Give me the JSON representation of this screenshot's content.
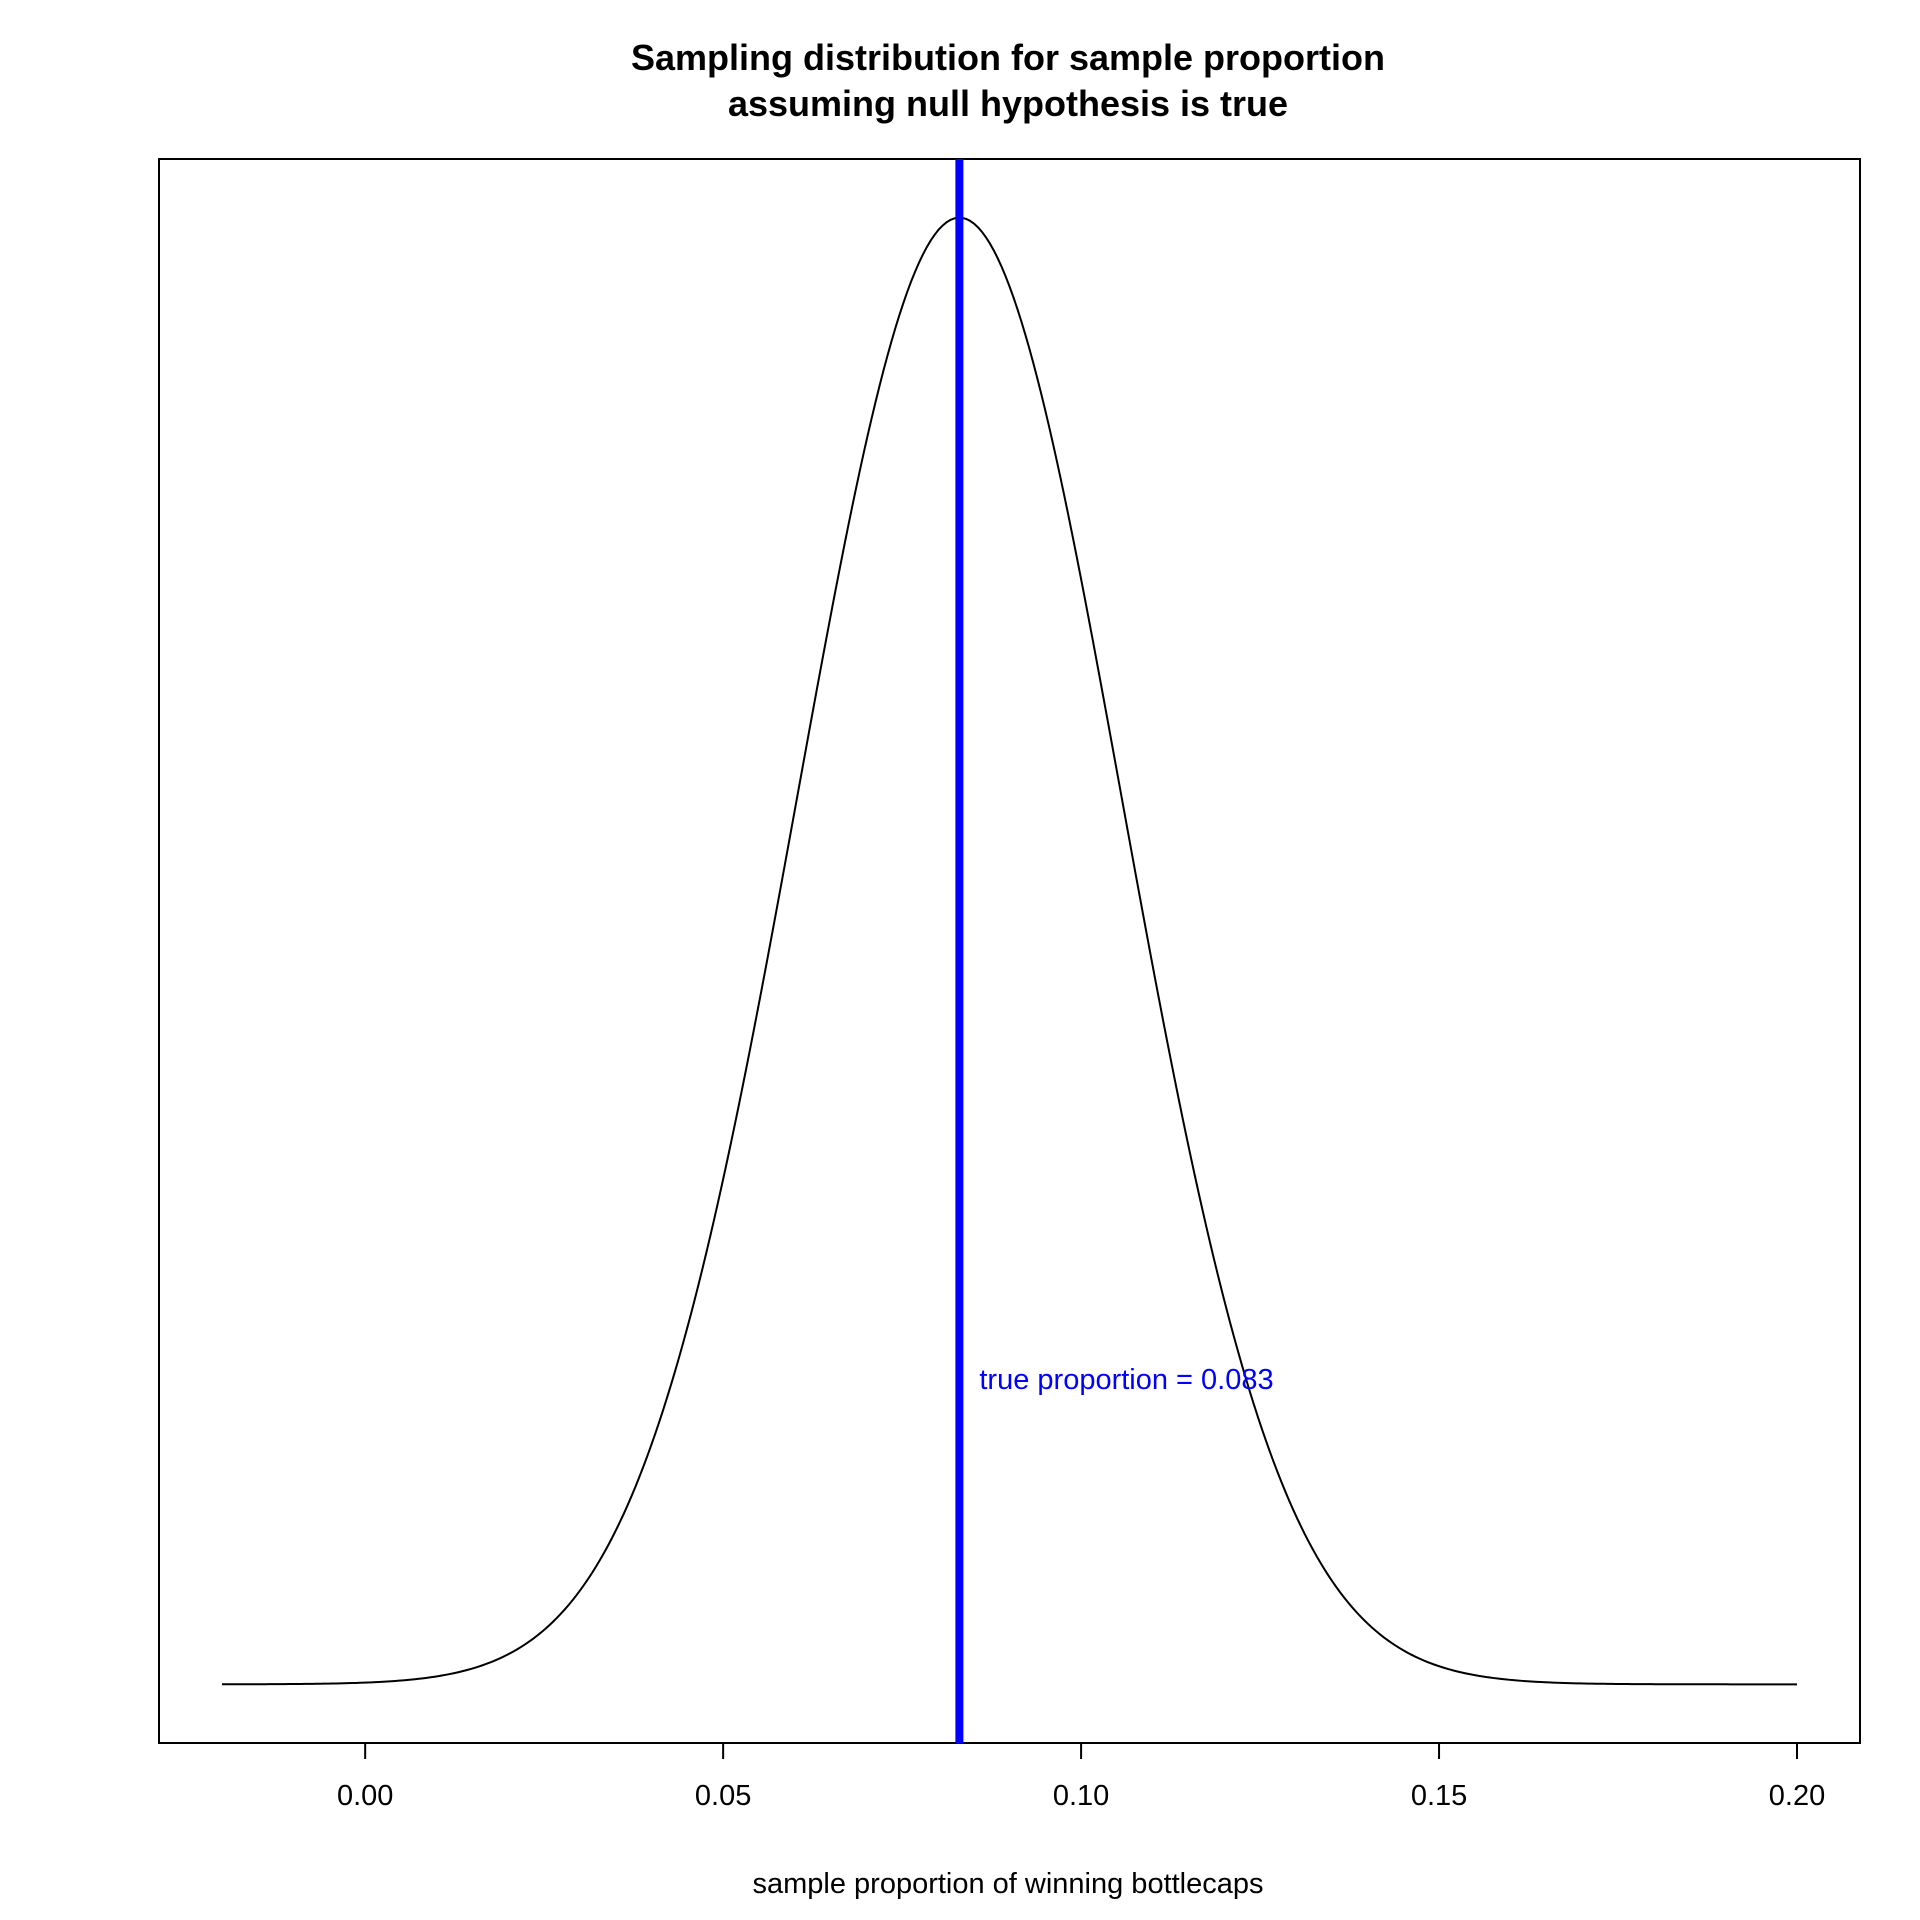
{
  "chart_data": {
    "type": "line",
    "title_lines": [
      "Sampling distribution for sample proportion",
      "assuming null hypothesis is true"
    ],
    "xlabel": "sample proportion of winning bottlecaps",
    "ylabel": "",
    "xlim": [
      -0.0288,
      0.2088
    ],
    "ylim": [
      -0.04,
      1.04
    ],
    "x_ticks": [
      0.0,
      0.05,
      0.1,
      0.15,
      0.2
    ],
    "x_tick_labels": [
      "0.00",
      "0.05",
      "0.10",
      "0.15",
      "0.20"
    ],
    "y_axis_shown": false,
    "grid": false,
    "series": [
      {
        "distribution": "normal",
        "mean": 0.083,
        "sd": 0.0226,
        "x_range": [
          -0.02,
          0.2
        ],
        "color": "#000000"
      }
    ],
    "reference_line": {
      "x": 0.083,
      "color": "#0000ff",
      "label": "true proportion = 0.083"
    }
  }
}
